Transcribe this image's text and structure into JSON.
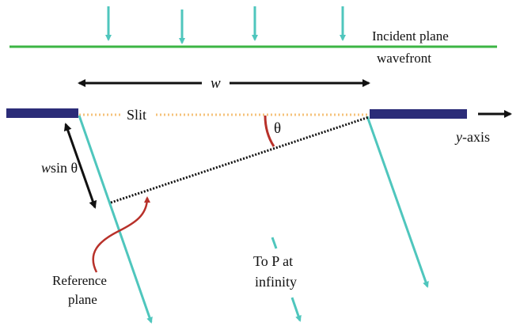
{
  "labels": {
    "incident_line1": "Incident plane",
    "incident_line2": "wavefront",
    "width": "w",
    "slit": "Slit",
    "theta": "θ",
    "yaxis_italic": "y",
    "yaxis_rest": "-axis",
    "wsin_italic": "w",
    "wsin_rest": "sin θ",
    "reference_line1": "Reference",
    "reference_line2": "plane",
    "top_line1": "To P at",
    "top_line2": "infinity"
  },
  "colors": {
    "incident_arrows": "#4fc6bd",
    "wavefront": "#3cb544",
    "screen": "#2b2c78",
    "slit_dots": "#f5c27a",
    "rays": "#4fc6bd",
    "angle_arc": "#b8312a",
    "pointer": "#b8312a",
    "dimension_arrows": "#111111"
  }
}
